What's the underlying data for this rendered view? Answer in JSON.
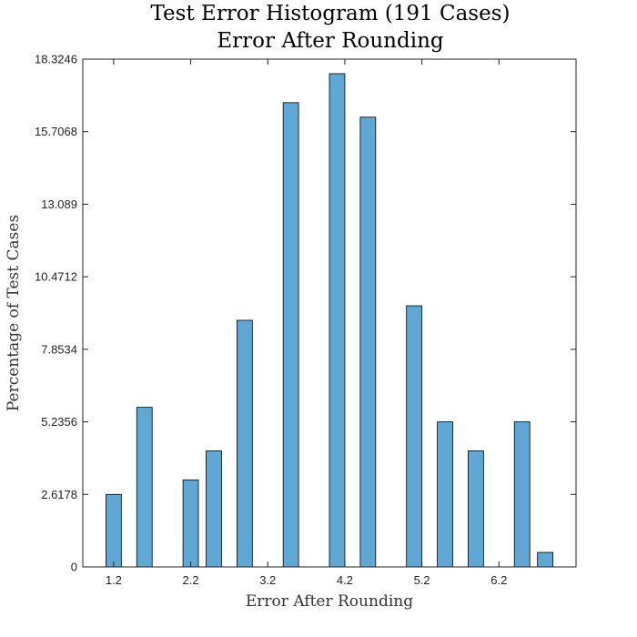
{
  "chart_data": {
    "type": "bar",
    "title": [
      "Test Error Histogram (191 Cases)",
      "Error After Rounding"
    ],
    "xlabel": "Error After Rounding",
    "ylabel": "Percentage of Test Cases",
    "x": [
      1.2,
      1.6,
      2.2,
      2.5,
      2.9,
      3.5,
      4.1,
      4.5,
      5.1,
      5.5,
      5.9,
      6.5,
      6.8
    ],
    "values": [
      2.6178,
      5.7592,
      3.1414,
      4.1885,
      8.9005,
      16.7539,
      17.801,
      16.2304,
      9.4241,
      5.2356,
      4.1885,
      5.2356,
      0.5236
    ],
    "bar_width": 0.2,
    "xlim": [
      0.8,
      7.2
    ],
    "ylim": [
      0,
      18.3246
    ],
    "xticks": [
      1.2,
      2.2,
      3.2,
      4.2,
      5.2,
      6.2
    ],
    "xtick_labels": [
      "1.2",
      "2.2",
      "3.2",
      "4.2",
      "5.2",
      "6.2"
    ],
    "yticks": [
      0,
      2.6178,
      5.2356,
      7.8534,
      10.4712,
      13.089,
      15.7068,
      18.3246
    ],
    "ytick_labels": [
      "0",
      "2.6178",
      "5.2356",
      "7.8534",
      "10.4712",
      "13.089",
      "15.7068",
      "18.3246"
    ],
    "bar_color": "#5fa8d6",
    "bar_edge_color": "#000000",
    "grid": false
  }
}
